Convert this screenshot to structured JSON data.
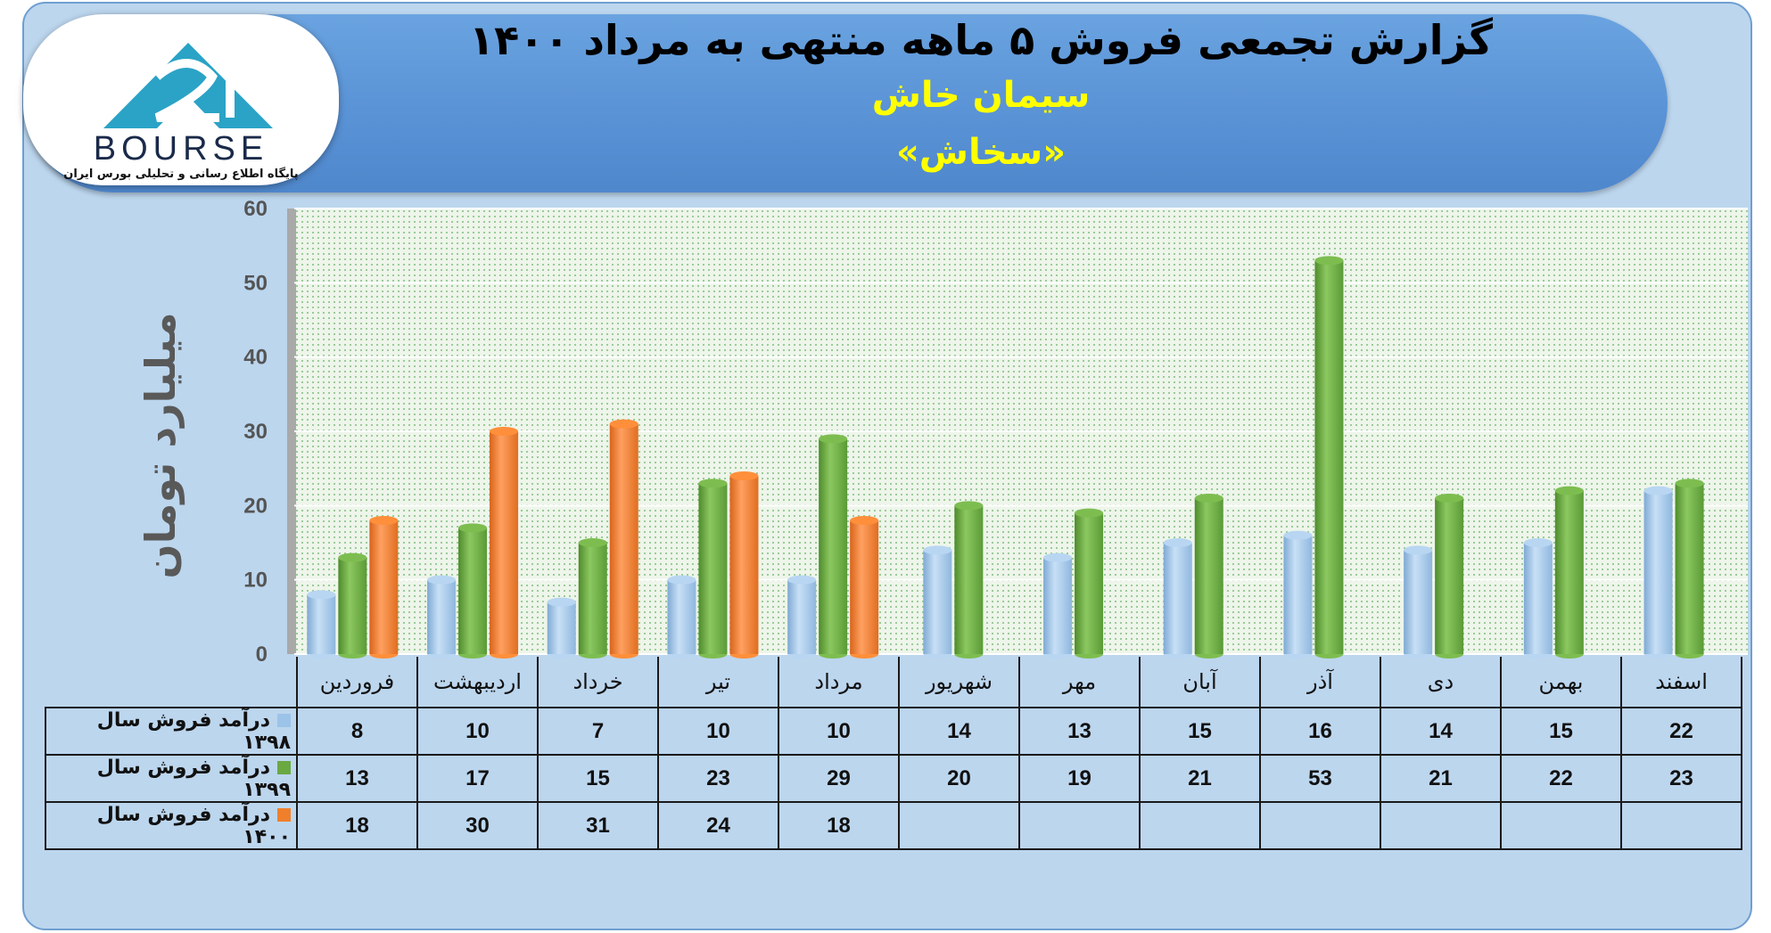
{
  "header": {
    "title": "گزارش تجمعی فروش ۵ ماهه منتهی به مرداد ۱۴۰۰",
    "company": "سیمان خاش",
    "symbol": "«سخاش»"
  },
  "logo": {
    "text": "BOURSE",
    "subtitle": "پایگاه اطلاع رسانی و تحلیلی بورس ایران"
  },
  "colors": {
    "s1398": "#9cc3e8",
    "s1399": "#6aa842",
    "s1400": "#f07f2c",
    "plot_bg": "#eef5ea"
  },
  "chart_data": {
    "type": "bar",
    "ylabel": "میلیارد تومان",
    "ylim": [
      0,
      60
    ],
    "yticks": [
      0,
      10,
      20,
      30,
      40,
      50,
      60
    ],
    "categories": [
      "فروردین",
      "اردیبهشت",
      "خرداد",
      "تیر",
      "مرداد",
      "شهریور",
      "مهر",
      "آبان",
      "آذر",
      "دی",
      "بهمن",
      "اسفند"
    ],
    "series": [
      {
        "name": "درآمد فروش سال ۱۳۹۸",
        "color": "#9cc3e8",
        "values": [
          8,
          10,
          7,
          10,
          10,
          14,
          13,
          15,
          16,
          14,
          15,
          22
        ]
      },
      {
        "name": "درآمد فروش سال ۱۳۹۹",
        "color": "#6aa842",
        "values": [
          13,
          17,
          15,
          23,
          29,
          20,
          19,
          21,
          53,
          21,
          22,
          23
        ]
      },
      {
        "name": "درآمد فروش سال ۱۴۰۰",
        "color": "#f07f2c",
        "values": [
          18,
          30,
          31,
          24,
          18,
          null,
          null,
          null,
          null,
          null,
          null,
          null
        ]
      }
    ],
    "grid": true,
    "legend": "data-table"
  }
}
